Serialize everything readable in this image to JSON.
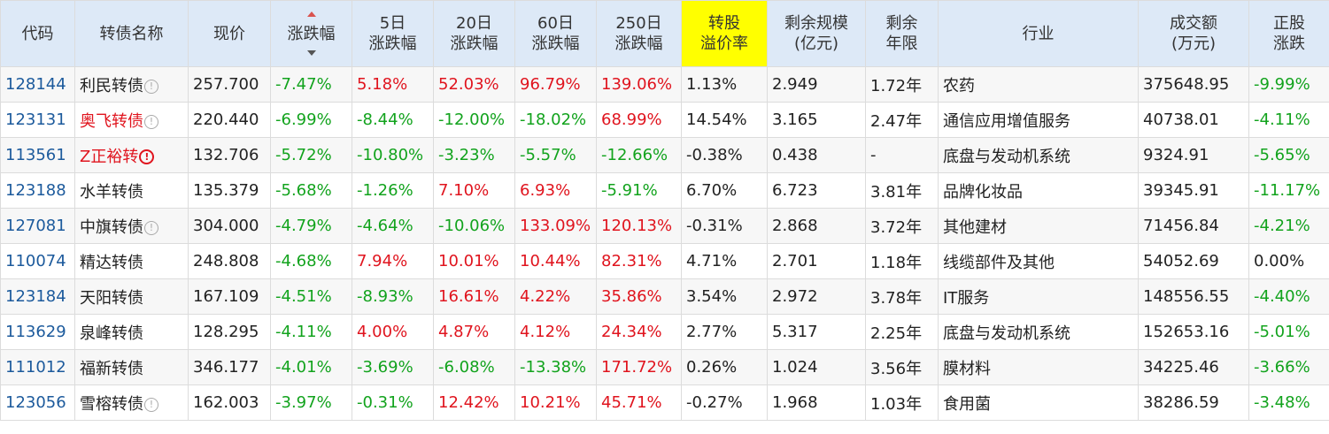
{
  "colors": {
    "header_bg": "#dde9f7",
    "highlight_header": "#ffff00",
    "up": "#e0141e",
    "down": "#12a31d",
    "code_link": "#1c5a9c"
  },
  "headers": {
    "code": "代码",
    "name": "转债名称",
    "price": "现价",
    "change": "涨跌幅",
    "d5_a": "5日",
    "d5_b": "涨跌幅",
    "d20_a": "20日",
    "d20_b": "涨跌幅",
    "d60_a": "60日",
    "d60_b": "涨跌幅",
    "d250_a": "250日",
    "d250_b": "涨跌幅",
    "premium_a": "转股",
    "premium_b": "溢价率",
    "scale_a": "剩余规模",
    "scale_b": "(亿元)",
    "years_a": "剩余",
    "years_b": "年限",
    "industry": "行业",
    "volume_a": "成交额",
    "volume_b": "(万元)",
    "stock_a": "正股",
    "stock_b": "涨跌"
  },
  "rows": [
    {
      "code": "128144",
      "name": "利民转债",
      "name_color": "normal",
      "icon": "info",
      "price": "257.700",
      "chg": "-7.47%",
      "chg_c": "green",
      "d5": "5.18%",
      "d5_c": "red",
      "d20": "52.03%",
      "d20_c": "red",
      "d60": "96.79%",
      "d60_c": "red",
      "d250": "139.06%",
      "d250_c": "red",
      "premium": "1.13%",
      "scale": "2.949",
      "years": "1.72年",
      "industry": "农药",
      "volume": "375648.95",
      "stock": "-9.99%",
      "stock_c": "green"
    },
    {
      "code": "123131",
      "name": "奥飞转债",
      "name_color": "red",
      "icon": "info",
      "price": "220.440",
      "chg": "-6.99%",
      "chg_c": "green",
      "d5": "-8.44%",
      "d5_c": "green",
      "d20": "-12.00%",
      "d20_c": "green",
      "d60": "-18.02%",
      "d60_c": "green",
      "d250": "68.99%",
      "d250_c": "red",
      "premium": "14.54%",
      "scale": "3.165",
      "years": "2.47年",
      "industry": "通信应用增值服务",
      "volume": "40738.01",
      "stock": "-4.11%",
      "stock_c": "green"
    },
    {
      "code": "113561",
      "name": "Z正裕转",
      "name_color": "red",
      "icon": "warn",
      "price": "132.706",
      "chg": "-5.72%",
      "chg_c": "green",
      "d5": "-10.80%",
      "d5_c": "green",
      "d20": "-3.23%",
      "d20_c": "green",
      "d60": "-5.57%",
      "d60_c": "green",
      "d250": "-12.66%",
      "d250_c": "green",
      "premium": "-0.38%",
      "scale": "0.438",
      "years": "-",
      "industry": "底盘与发动机系统",
      "volume": "9324.91",
      "stock": "-5.65%",
      "stock_c": "green"
    },
    {
      "code": "123188",
      "name": "水羊转债",
      "name_color": "normal",
      "icon": "",
      "price": "135.379",
      "chg": "-5.68%",
      "chg_c": "green",
      "d5": "-1.26%",
      "d5_c": "green",
      "d20": "7.10%",
      "d20_c": "red",
      "d60": "6.93%",
      "d60_c": "red",
      "d250": "-5.91%",
      "d250_c": "green",
      "premium": "6.70%",
      "scale": "6.723",
      "years": "3.81年",
      "industry": "品牌化妆品",
      "volume": "39345.91",
      "stock": "-11.17%",
      "stock_c": "green"
    },
    {
      "code": "127081",
      "name": "中旗转债",
      "name_color": "normal",
      "icon": "info",
      "price": "304.000",
      "chg": "-4.79%",
      "chg_c": "green",
      "d5": "-4.64%",
      "d5_c": "green",
      "d20": "-10.06%",
      "d20_c": "green",
      "d60": "133.09%",
      "d60_c": "red",
      "d250": "120.13%",
      "d250_c": "red",
      "premium": "-0.31%",
      "scale": "2.868",
      "years": "3.72年",
      "industry": "其他建材",
      "volume": "71456.84",
      "stock": "-4.21%",
      "stock_c": "green"
    },
    {
      "code": "110074",
      "name": "精达转债",
      "name_color": "normal",
      "icon": "",
      "price": "248.808",
      "chg": "-4.68%",
      "chg_c": "green",
      "d5": "7.94%",
      "d5_c": "red",
      "d20": "10.01%",
      "d20_c": "red",
      "d60": "10.44%",
      "d60_c": "red",
      "d250": "82.31%",
      "d250_c": "red",
      "premium": "4.71%",
      "scale": "2.701",
      "years": "1.18年",
      "industry": "线缆部件及其他",
      "volume": "54052.69",
      "stock": "0.00%",
      "stock_c": "normal"
    },
    {
      "code": "123184",
      "name": "天阳转债",
      "name_color": "normal",
      "icon": "",
      "price": "167.109",
      "chg": "-4.51%",
      "chg_c": "green",
      "d5": "-8.93%",
      "d5_c": "green",
      "d20": "16.61%",
      "d20_c": "red",
      "d60": "4.22%",
      "d60_c": "red",
      "d250": "35.86%",
      "d250_c": "red",
      "premium": "3.54%",
      "scale": "2.972",
      "years": "3.78年",
      "industry": "IT服务",
      "volume": "148556.55",
      "stock": "-4.40%",
      "stock_c": "green"
    },
    {
      "code": "113629",
      "name": "泉峰转债",
      "name_color": "normal",
      "icon": "",
      "price": "128.295",
      "chg": "-4.11%",
      "chg_c": "green",
      "d5": "4.00%",
      "d5_c": "red",
      "d20": "4.87%",
      "d20_c": "red",
      "d60": "4.12%",
      "d60_c": "red",
      "d250": "24.34%",
      "d250_c": "red",
      "premium": "2.77%",
      "scale": "5.317",
      "years": "2.25年",
      "industry": "底盘与发动机系统",
      "volume": "152653.16",
      "stock": "-5.01%",
      "stock_c": "green"
    },
    {
      "code": "111012",
      "name": "福新转债",
      "name_color": "normal",
      "icon": "",
      "price": "346.177",
      "chg": "-4.01%",
      "chg_c": "green",
      "d5": "-3.69%",
      "d5_c": "green",
      "d20": "-6.08%",
      "d20_c": "green",
      "d60": "-13.38%",
      "d60_c": "green",
      "d250": "171.72%",
      "d250_c": "red",
      "premium": "0.26%",
      "scale": "1.024",
      "years": "3.56年",
      "industry": "膜材料",
      "volume": "34225.46",
      "stock": "-3.66%",
      "stock_c": "green"
    },
    {
      "code": "123056",
      "name": "雪榕转债",
      "name_color": "normal",
      "icon": "info",
      "price": "162.003",
      "chg": "-3.97%",
      "chg_c": "green",
      "d5": "-0.31%",
      "d5_c": "green",
      "d20": "12.42%",
      "d20_c": "red",
      "d60": "10.21%",
      "d60_c": "red",
      "d250": "45.71%",
      "d250_c": "red",
      "premium": "-0.27%",
      "scale": "1.968",
      "years": "1.03年",
      "industry": "食用菌",
      "volume": "38286.59",
      "stock": "-3.48%",
      "stock_c": "green"
    }
  ]
}
